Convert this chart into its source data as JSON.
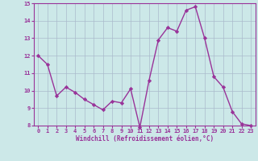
{
  "x": [
    0,
    1,
    2,
    3,
    4,
    5,
    6,
    7,
    8,
    9,
    10,
    11,
    12,
    13,
    14,
    15,
    16,
    17,
    18,
    19,
    20,
    21,
    22,
    23
  ],
  "y": [
    12.0,
    11.5,
    9.7,
    10.2,
    9.9,
    9.5,
    9.2,
    8.9,
    9.4,
    9.3,
    10.1,
    7.9,
    10.6,
    12.9,
    13.6,
    13.4,
    14.6,
    14.8,
    13.0,
    10.8,
    10.2,
    8.8,
    8.1,
    8.0
  ],
  "line_color": "#993399",
  "marker": "D",
  "marker_size": 2.2,
  "line_width": 1.0,
  "bg_color": "#cce8e8",
  "grid_color": "#aabbcc",
  "xlabel": "Windchill (Refroidissement éolien,°C)",
  "xlabel_color": "#993399",
  "tick_color": "#993399",
  "spine_color": "#993399",
  "ylim": [
    8,
    15
  ],
  "xlim": [
    -0.5,
    23.5
  ],
  "yticks": [
    8,
    9,
    10,
    11,
    12,
    13,
    14,
    15
  ],
  "xticks": [
    0,
    1,
    2,
    3,
    4,
    5,
    6,
    7,
    8,
    9,
    10,
    11,
    12,
    13,
    14,
    15,
    16,
    17,
    18,
    19,
    20,
    21,
    22,
    23
  ]
}
